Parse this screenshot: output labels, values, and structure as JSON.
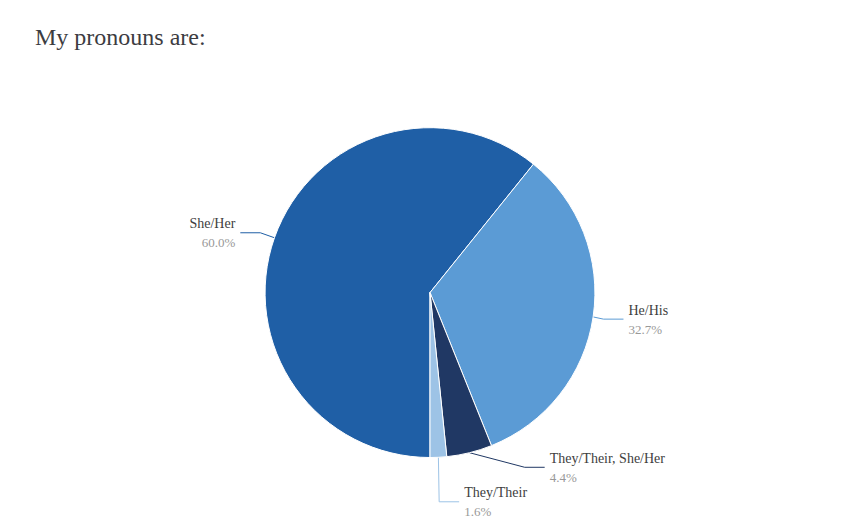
{
  "chart_data": {
    "type": "pie",
    "title": "My pronouns are:",
    "categories": [
      "She/Her",
      "He/His",
      "They/Their, She/Her",
      "They/Their"
    ],
    "values": [
      60.0,
      32.7,
      4.4,
      1.6
    ],
    "value_labels": [
      "60.0%",
      "32.7%",
      "4.4%",
      "1.6%"
    ],
    "colors": [
      "#1F5FA6",
      "#5B9BD5",
      "#203864",
      "#9DC3E6"
    ],
    "data_labels": true
  }
}
